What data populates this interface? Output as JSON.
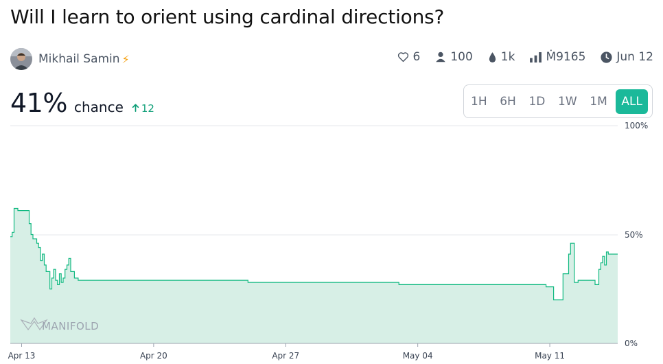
{
  "market": {
    "title": "Will I learn to orient using cardinal directions?",
    "creator_name": "Mikhail Samin"
  },
  "stats": {
    "likes": "6",
    "traders": "100",
    "liquidity": "1k",
    "volume": "Ṁ9165",
    "close_date": "Jun 12"
  },
  "probability": {
    "value": "41%",
    "label": "chance",
    "change": "12"
  },
  "ranges": [
    "1H",
    "6H",
    "1D",
    "1W",
    "1M",
    "ALL"
  ],
  "active_range": "ALL",
  "watermark": "MANIFOLD",
  "colors": {
    "accent": "#1bb99a",
    "line": "#11b981",
    "fill": "#d7efe6",
    "change": "#0f9f78"
  },
  "icons": [
    "heart-icon",
    "user-icon",
    "droplet-icon",
    "bar-chart-icon",
    "clock-icon"
  ],
  "chart_data": {
    "type": "area",
    "title": "",
    "xlabel": "",
    "ylabel": "",
    "ylim": [
      0,
      100
    ],
    "y_ticks": [
      "100%",
      "50%",
      "0%"
    ],
    "x_ticks": [
      "Apr 13",
      "Apr 20",
      "Apr 27",
      "May 04",
      "May 11"
    ],
    "x_tick_days": [
      13,
      20,
      27,
      34,
      41
    ],
    "x_range_days": [
      12.4,
      44.6
    ],
    "grid": "horizontal at 100% and 50%",
    "series": [
      {
        "x": [
          12.4,
          12.5,
          12.6,
          12.8,
          13.4,
          13.5,
          13.6,
          13.8,
          13.9,
          14.0,
          14.1,
          14.2,
          14.3,
          14.5,
          14.6,
          14.7,
          14.8,
          14.9,
          15.0,
          15.1,
          15.2,
          15.3,
          15.4,
          15.5,
          15.6,
          15.8,
          16.0,
          17.0,
          18.0,
          19.0,
          20.0,
          22.0,
          23.0,
          25.0,
          27.0,
          30.0,
          33.0,
          36.0,
          39.0,
          40.0,
          40.5,
          40.8,
          41.0,
          41.2,
          41.5,
          41.7,
          41.9,
          42.0,
          42.1,
          42.3,
          42.5,
          43.0,
          43.4,
          43.5,
          43.6,
          43.7,
          43.8,
          43.9,
          44.0,
          44.1,
          44.6
        ],
        "y": [
          49,
          51,
          62,
          61,
          55,
          50,
          48,
          46,
          44,
          38,
          41,
          36,
          33,
          25,
          30,
          34,
          29,
          27,
          32,
          28,
          30,
          34,
          36,
          39,
          33,
          30,
          29,
          29,
          29,
          29,
          29,
          29,
          29,
          28,
          28,
          28,
          27,
          27,
          27,
          27,
          27,
          26,
          26,
          20,
          20,
          32,
          32,
          41,
          46,
          28,
          29,
          29,
          27,
          27,
          34,
          37,
          40,
          36,
          42,
          41,
          41
        ]
      }
    ]
  }
}
